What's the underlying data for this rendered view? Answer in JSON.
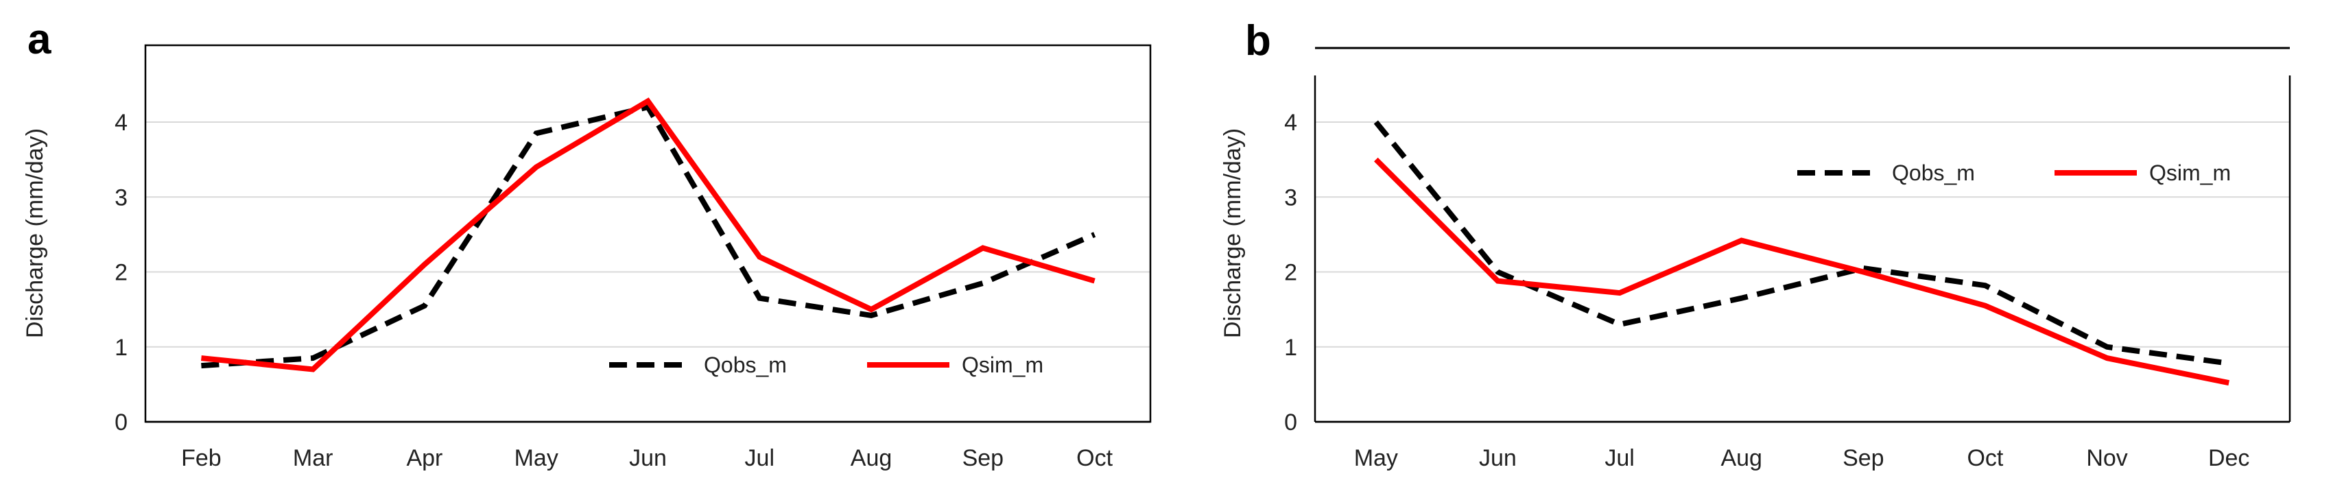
{
  "chart_data": [
    {
      "type": "line",
      "panel_label": "a",
      "categories": [
        "Feb",
        "Mar",
        "Apr",
        "May",
        "Jun",
        "Jul",
        "Aug",
        "Sep",
        "Oct"
      ],
      "series": [
        {
          "name": "Qobs_m",
          "style": "dashed",
          "color": "#000000",
          "values": [
            0.75,
            0.85,
            1.55,
            3.85,
            4.2,
            1.65,
            1.42,
            1.85,
            2.5
          ]
        },
        {
          "name": "Qsim_m",
          "style": "solid",
          "color": "#ff0000",
          "values": [
            0.85,
            0.7,
            2.1,
            3.4,
            4.28,
            2.2,
            1.5,
            2.32,
            1.88
          ]
        }
      ],
      "yticks": [
        "0",
        "1",
        "2",
        "3",
        "4"
      ],
      "ylabel": "Discharge (mm/day)",
      "xlabel": "",
      "ylim": [
        0,
        5
      ],
      "grid": true,
      "legend_position": "bottom-right"
    },
    {
      "type": "line",
      "panel_label": "b",
      "categories": [
        "May",
        "Jun",
        "Jul",
        "Aug",
        "Sep",
        "Oct",
        "Nov",
        "Dec"
      ],
      "series": [
        {
          "name": "Qobs_m",
          "style": "dashed",
          "color": "#000000",
          "values": [
            4.0,
            2.0,
            1.3,
            1.65,
            2.05,
            1.82,
            1.0,
            0.78
          ]
        },
        {
          "name": "Qsim_m",
          "style": "solid",
          "color": "#ff0000",
          "values": [
            3.5,
            1.88,
            1.72,
            2.42,
            2.0,
            1.55,
            0.85,
            0.52
          ]
        }
      ],
      "yticks": [
        "0",
        "1",
        "2",
        "3",
        "4"
      ],
      "ylabel": "Discharge (mm/day)",
      "xlabel": "",
      "ylim": [
        0,
        5
      ],
      "grid": true,
      "legend_position": "top-right"
    }
  ]
}
